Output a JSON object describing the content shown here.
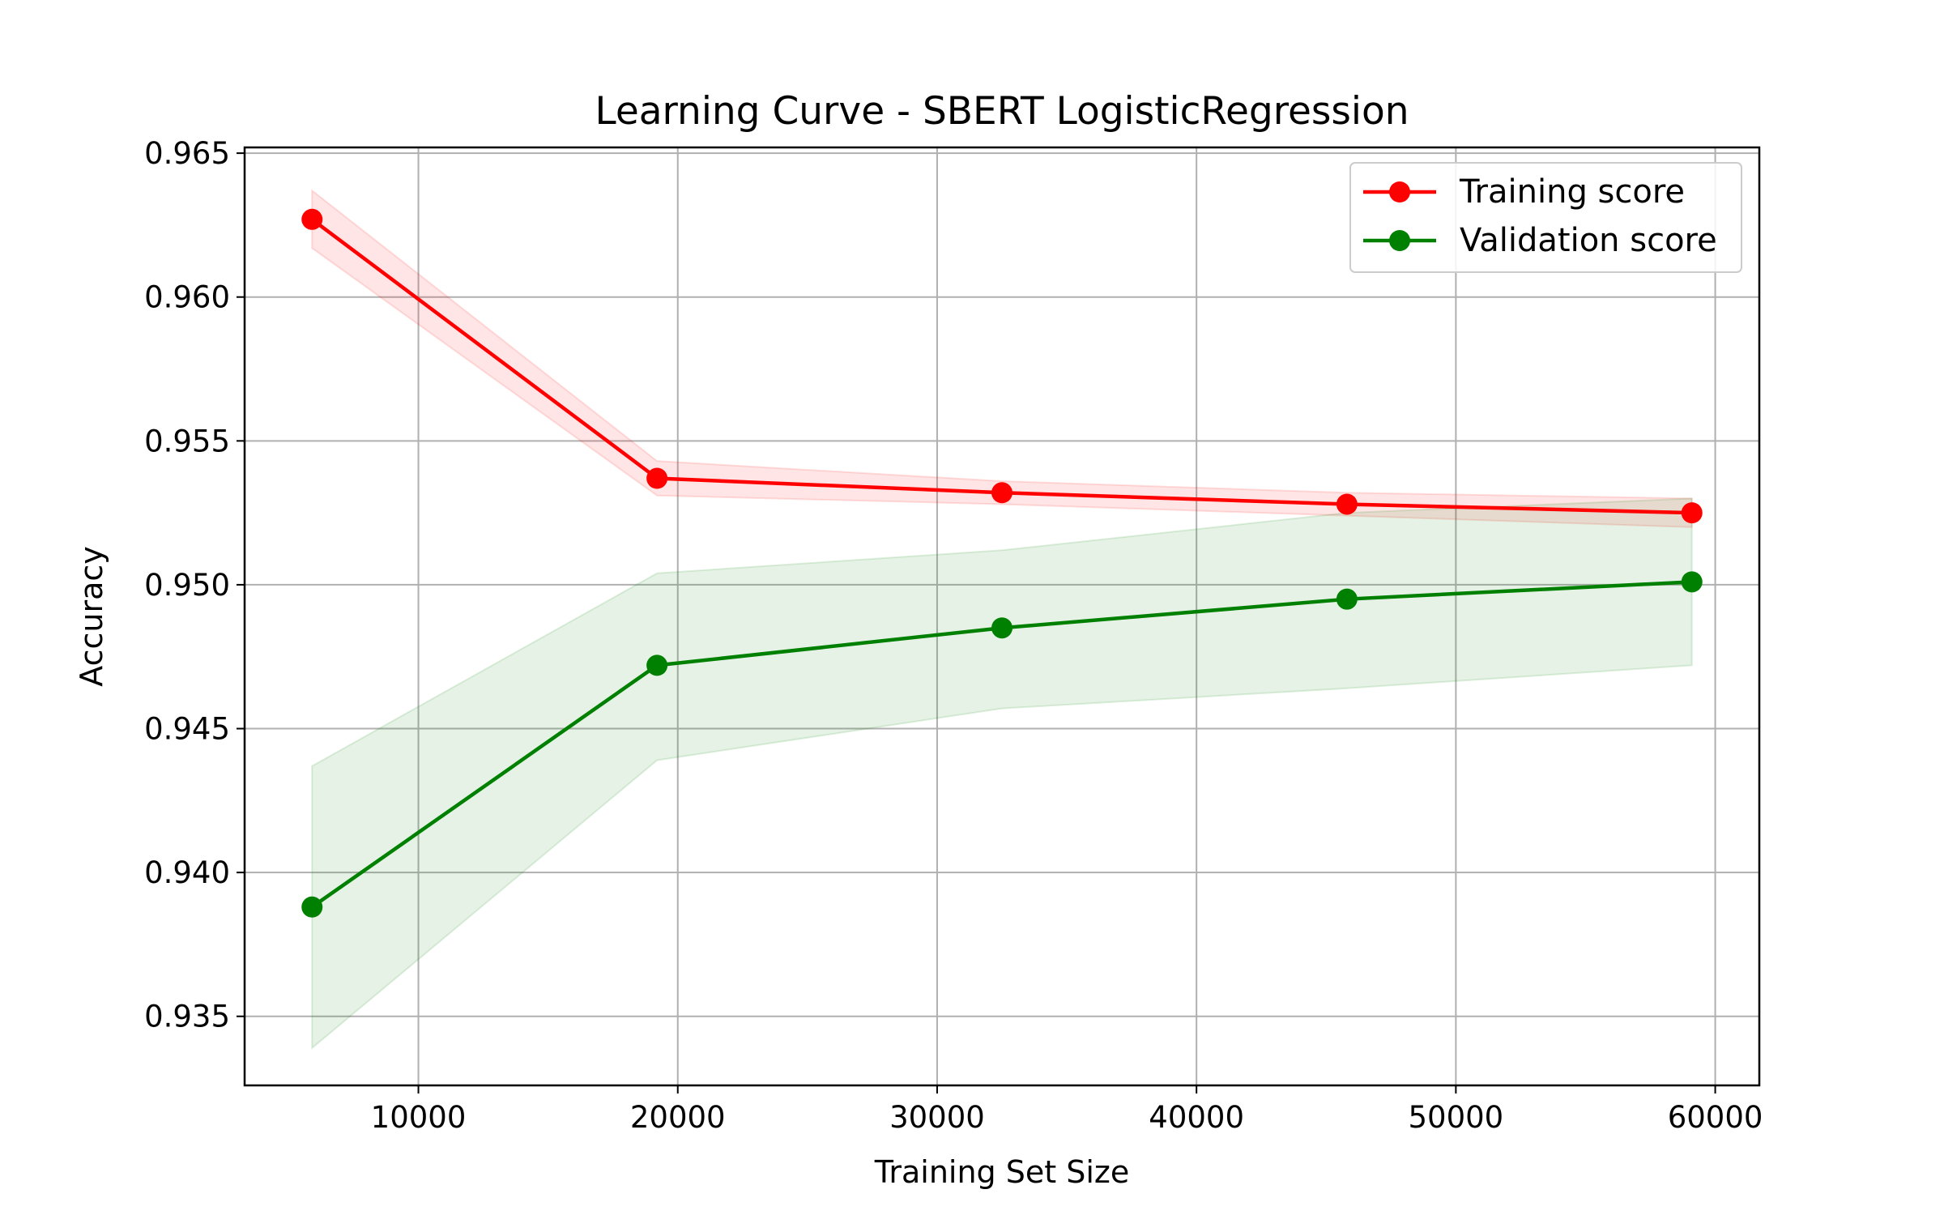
{
  "chart_data": {
    "type": "line",
    "title": "Learning Curve - SBERT LogisticRegression",
    "xlabel": "Training Set Size",
    "ylabel": "Accuracy",
    "xlim": [
      3300,
      61700
    ],
    "ylim": [
      0.9326,
      0.9652
    ],
    "xticks": [
      10000,
      20000,
      30000,
      40000,
      50000,
      60000
    ],
    "xtick_labels": [
      "10000",
      "20000",
      "30000",
      "40000",
      "50000",
      "60000"
    ],
    "yticks": [
      0.935,
      0.94,
      0.945,
      0.95,
      0.955,
      0.96,
      0.965
    ],
    "ytick_labels": [
      "0.935",
      "0.940",
      "0.945",
      "0.950",
      "0.955",
      "0.960",
      "0.965"
    ],
    "grid": true,
    "legend_position": "top-right",
    "x": [
      5900,
      19200,
      32500,
      45800,
      59100
    ],
    "series": [
      {
        "name": "Training score",
        "color": "#ff0000",
        "band_color": "#ff0000",
        "values": [
          0.9627,
          0.9537,
          0.9532,
          0.9528,
          0.9525
        ],
        "lower": [
          0.9617,
          0.9531,
          0.9528,
          0.9524,
          0.952
        ],
        "upper": [
          0.9637,
          0.9543,
          0.9536,
          0.9532,
          0.953
        ]
      },
      {
        "name": "Validation score",
        "color": "#008000",
        "band_color": "#008000",
        "values": [
          0.9388,
          0.9472,
          0.9485,
          0.9495,
          0.9501
        ],
        "lower": [
          0.9339,
          0.9439,
          0.9457,
          0.9464,
          0.9472
        ],
        "upper": [
          0.9437,
          0.9504,
          0.9512,
          0.9525,
          0.953
        ]
      }
    ]
  }
}
